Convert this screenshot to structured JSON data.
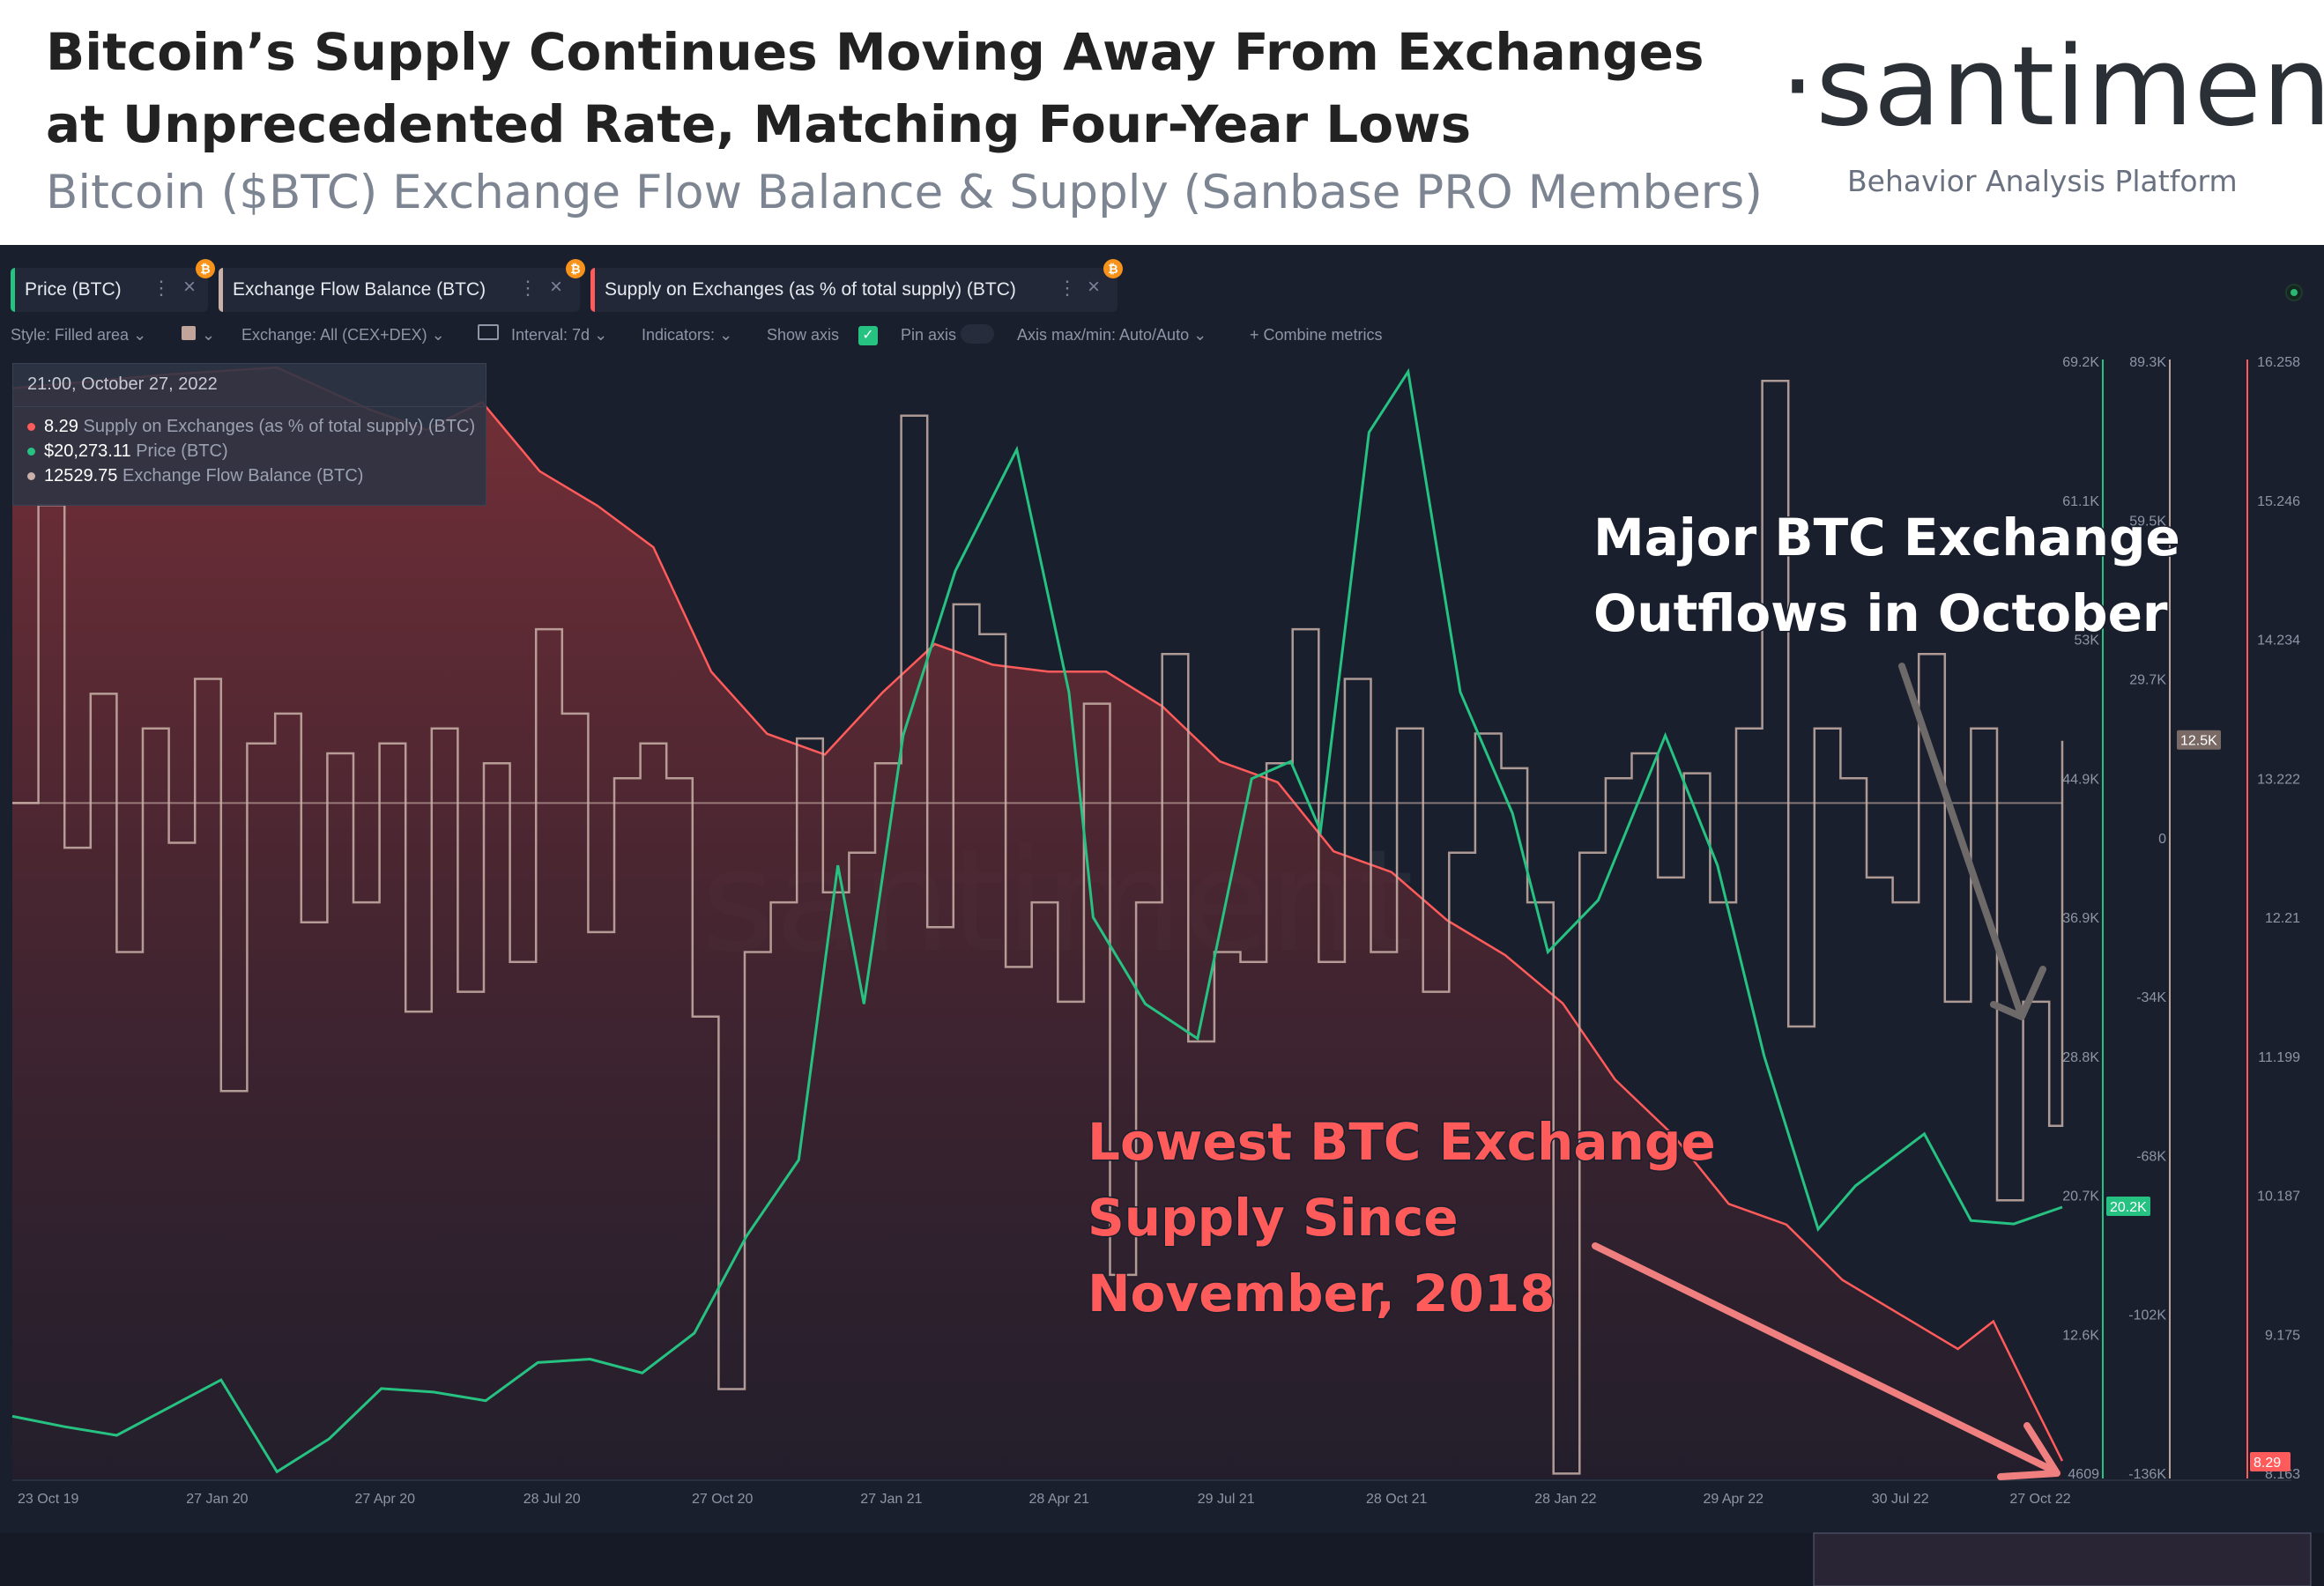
{
  "header": {
    "title_line1": "Bitcoin’s Supply Continues Moving Away From Exchanges",
    "title_line2": "at Unprecedented Rate, Matching Four-Year Lows",
    "subtitle": "Bitcoin ($BTC) Exchange Flow Balance & Supply (Sanbase PRO Members)",
    "logo": "·santiment·",
    "logo_tagline": "Behavior Analysis Platform"
  },
  "toolbar": {
    "metrics": [
      {
        "label": "Price (BTC)",
        "color": "#26c281"
      },
      {
        "label": "Exchange Flow Balance (BTC)",
        "color": "#c9b0a8"
      },
      {
        "label": "Supply on Exchanges (as % of total supply) (BTC)",
        "color": "#ff5b5b"
      }
    ],
    "coin_badge": "₿",
    "dots_icon": "⋮",
    "close_icon": "×",
    "style_label": "Style: Filled area",
    "exchange_label": "Exchange: All (CEX+DEX)",
    "interval_label": "Interval: 7d",
    "indicators_label": "Indicators:",
    "show_axis_label": "Show axis",
    "pin_axis_label": "Pin axis",
    "axis_minmax_label": "Axis max/min: Auto/Auto",
    "combine_label": "+  Combine metrics",
    "chevron": "⌄",
    "checkmark": "✓"
  },
  "tooltip": {
    "date": "21:00, October 27, 2022",
    "rows": [
      {
        "value": "8.29",
        "label": "Supply on Exchanges (as % of total supply) (BTC)",
        "color": "#ff5b5b"
      },
      {
        "value": "$20,273.11",
        "label": "Price (BTC)",
        "color": "#26c281"
      },
      {
        "value": "12529.75",
        "label": "Exchange Flow Balance (BTC)",
        "color": "#c9b0a8"
      }
    ]
  },
  "watermark": "santiment",
  "annotations": {
    "outflows_line1": "Major BTC Exchange",
    "outflows_line2": "Outflows in October",
    "lowest_line1": "Lowest BTC Exchange",
    "lowest_line2": "Supply Since",
    "lowest_line3": "November, 2018"
  },
  "chart_data": {
    "type": "line",
    "x_ticks": [
      "23 Oct 19",
      "27 Jan 20",
      "27 Apr 20",
      "28 Jul 20",
      "27 Oct 20",
      "27 Jan 21",
      "28 Apr 21",
      "29 Jul 21",
      "28 Oct 21",
      "28 Jan 22",
      "29 Apr 22",
      "30 Jul 22",
      "27 Oct 22"
    ],
    "x_range": [
      "2019-10-23",
      "2022-10-27"
    ],
    "price_axis": {
      "ticks": [
        "69.2K",
        "61.1K",
        "53K",
        "44.9K",
        "36.9K",
        "28.8K",
        "20.7K",
        "12.6K",
        "4609"
      ],
      "range": [
        4609,
        69200
      ],
      "current": "20.2K"
    },
    "flow_axis": {
      "ticks": [
        "89.3K",
        "59.5K",
        "29.7K",
        "0",
        "-34K",
        "-68K",
        "-102K",
        "-136K"
      ],
      "range": [
        -136000,
        89300
      ],
      "current": "12.5K"
    },
    "supply_axis": {
      "ticks": [
        "16.258",
        "15.246",
        "14.234",
        "13.222",
        "12.21",
        "11.199",
        "10.187",
        "9.175",
        "8.163"
      ],
      "range": [
        8.163,
        16.258
      ],
      "current": "8.29"
    },
    "series": [
      {
        "name": "Price (BTC)",
        "color": "#26c281",
        "points": [
          [
            "2019-10-23",
            8200
          ],
          [
            "2019-11-20",
            7600
          ],
          [
            "2019-12-18",
            7100
          ],
          [
            "2020-01-15",
            8700
          ],
          [
            "2020-02-12",
            10300
          ],
          [
            "2020-03-13",
            5000
          ],
          [
            "2020-04-10",
            6900
          ],
          [
            "2020-05-08",
            9800
          ],
          [
            "2020-06-05",
            9600
          ],
          [
            "2020-07-03",
            9100
          ],
          [
            "2020-07-31",
            11300
          ],
          [
            "2020-08-28",
            11500
          ],
          [
            "2020-09-25",
            10700
          ],
          [
            "2020-10-23",
            13000
          ],
          [
            "2020-11-20",
            18600
          ],
          [
            "2020-12-18",
            23000
          ],
          [
            "2021-01-08",
            40000
          ],
          [
            "2021-01-22",
            32000
          ],
          [
            "2021-02-12",
            47500
          ],
          [
            "2021-03-12",
            57000
          ],
          [
            "2021-04-14",
            64000
          ],
          [
            "2021-05-12",
            50000
          ],
          [
            "2021-05-25",
            37000
          ],
          [
            "2021-06-22",
            32000
          ],
          [
            "2021-07-20",
            30000
          ],
          [
            "2021-08-18",
            45000
          ],
          [
            "2021-09-08",
            46000
          ],
          [
            "2021-09-24",
            42000
          ],
          [
            "2021-10-20",
            65000
          ],
          [
            "2021-11-10",
            68500
          ],
          [
            "2021-12-08",
            50000
          ],
          [
            "2022-01-05",
            43000
          ],
          [
            "2022-01-24",
            35000
          ],
          [
            "2022-02-20",
            38000
          ],
          [
            "2022-03-28",
            47500
          ],
          [
            "2022-04-25",
            40000
          ],
          [
            "2022-05-20",
            29000
          ],
          [
            "2022-06-18",
            19000
          ],
          [
            "2022-07-08",
            21500
          ],
          [
            "2022-08-14",
            24500
          ],
          [
            "2022-09-08",
            19500
          ],
          [
            "2022-10-01",
            19300
          ],
          [
            "2022-10-27",
            20273
          ]
        ]
      },
      {
        "name": "Supply on Exchanges (as % of total supply) (BTC)",
        "color": "#ff5b5b",
        "points": [
          [
            "2019-10-23",
            16.05
          ],
          [
            "2020-01-15",
            16.15
          ],
          [
            "2020-03-13",
            16.2
          ],
          [
            "2020-05-01",
            15.9
          ],
          [
            "2020-06-01",
            15.75
          ],
          [
            "2020-07-01",
            15.95
          ],
          [
            "2020-08-01",
            15.45
          ],
          [
            "2020-09-01",
            15.2
          ],
          [
            "2020-10-01",
            14.9
          ],
          [
            "2020-11-01",
            14.0
          ],
          [
            "2020-12-01",
            13.55
          ],
          [
            "2021-01-01",
            13.4
          ],
          [
            "2021-02-01",
            13.85
          ],
          [
            "2021-03-01",
            14.2
          ],
          [
            "2021-04-01",
            14.05
          ],
          [
            "2021-05-01",
            14.0
          ],
          [
            "2021-06-01",
            14.0
          ],
          [
            "2021-07-01",
            13.75
          ],
          [
            "2021-08-01",
            13.35
          ],
          [
            "2021-09-01",
            13.2
          ],
          [
            "2021-10-01",
            12.7
          ],
          [
            "2021-11-01",
            12.55
          ],
          [
            "2021-12-01",
            12.2
          ],
          [
            "2022-01-01",
            11.95
          ],
          [
            "2022-02-01",
            11.6
          ],
          [
            "2022-03-01",
            11.05
          ],
          [
            "2022-04-01",
            10.65
          ],
          [
            "2022-05-01",
            10.15
          ],
          [
            "2022-06-01",
            10.0
          ],
          [
            "2022-07-01",
            9.6
          ],
          [
            "2022-08-01",
            9.35
          ],
          [
            "2022-09-01",
            9.1
          ],
          [
            "2022-09-20",
            9.3
          ],
          [
            "2022-10-10",
            8.75
          ],
          [
            "2022-10-27",
            8.29
          ]
        ]
      },
      {
        "name": "Exchange Flow Balance (BTC)",
        "color": "#c9b0a8",
        "type": "step",
        "points": [
          [
            "2019-10-23",
            0
          ],
          [
            "2019-11-06",
            60000
          ],
          [
            "2019-11-20",
            -9000
          ],
          [
            "2019-12-04",
            22000
          ],
          [
            "2019-12-18",
            -30000
          ],
          [
            "2020-01-01",
            15000
          ],
          [
            "2020-01-15",
            -8000
          ],
          [
            "2020-01-29",
            25000
          ],
          [
            "2020-02-12",
            -58000
          ],
          [
            "2020-02-26",
            12000
          ],
          [
            "2020-03-12",
            18000
          ],
          [
            "2020-03-26",
            -24000
          ],
          [
            "2020-04-09",
            10000
          ],
          [
            "2020-04-23",
            -20000
          ],
          [
            "2020-05-07",
            12000
          ],
          [
            "2020-05-21",
            -42000
          ],
          [
            "2020-06-04",
            15000
          ],
          [
            "2020-06-18",
            -38000
          ],
          [
            "2020-07-02",
            8000
          ],
          [
            "2020-07-16",
            -32000
          ],
          [
            "2020-07-30",
            35000
          ],
          [
            "2020-08-13",
            18000
          ],
          [
            "2020-08-27",
            -26000
          ],
          [
            "2020-09-10",
            5000
          ],
          [
            "2020-09-24",
            12000
          ],
          [
            "2020-10-08",
            5000
          ],
          [
            "2020-10-22",
            -43000
          ],
          [
            "2020-11-05",
            -118000
          ],
          [
            "2020-11-19",
            -30000
          ],
          [
            "2020-12-03",
            -20000
          ],
          [
            "2020-12-17",
            13000
          ],
          [
            "2020-12-31",
            -18000
          ],
          [
            "2021-01-14",
            -10000
          ],
          [
            "2021-01-28",
            8000
          ],
          [
            "2021-02-11",
            78000
          ],
          [
            "2021-02-25",
            -25000
          ],
          [
            "2021-03-11",
            40000
          ],
          [
            "2021-03-25",
            34000
          ],
          [
            "2021-04-08",
            -33000
          ],
          [
            "2021-04-22",
            -20000
          ],
          [
            "2021-05-06",
            -40000
          ],
          [
            "2021-05-20",
            20000
          ],
          [
            "2021-06-03",
            -95000
          ],
          [
            "2021-06-17",
            -20000
          ],
          [
            "2021-07-01",
            30000
          ],
          [
            "2021-07-15",
            -48000
          ],
          [
            "2021-07-29",
            -30000
          ],
          [
            "2021-08-12",
            -32000
          ],
          [
            "2021-08-26",
            8000
          ],
          [
            "2021-09-09",
            35000
          ],
          [
            "2021-09-23",
            -32000
          ],
          [
            "2021-10-07",
            25000
          ],
          [
            "2021-10-21",
            -30000
          ],
          [
            "2021-11-04",
            15000
          ],
          [
            "2021-11-18",
            -38000
          ],
          [
            "2021-12-02",
            -10000
          ],
          [
            "2021-12-16",
            14000
          ],
          [
            "2021-12-30",
            7000
          ],
          [
            "2022-01-13",
            -20000
          ],
          [
            "2022-01-27",
            -135000
          ],
          [
            "2022-02-10",
            -10000
          ],
          [
            "2022-02-24",
            5000
          ],
          [
            "2022-03-10",
            10000
          ],
          [
            "2022-03-24",
            -15000
          ],
          [
            "2022-04-07",
            6000
          ],
          [
            "2022-04-21",
            -20000
          ],
          [
            "2022-05-05",
            15000
          ],
          [
            "2022-05-19",
            85000
          ],
          [
            "2022-06-02",
            -45000
          ],
          [
            "2022-06-16",
            15000
          ],
          [
            "2022-06-30",
            5000
          ],
          [
            "2022-07-14",
            -15000
          ],
          [
            "2022-07-28",
            -20000
          ],
          [
            "2022-08-11",
            30000
          ],
          [
            "2022-08-25",
            -40000
          ],
          [
            "2022-09-08",
            15000
          ],
          [
            "2022-09-22",
            -80000
          ],
          [
            "2022-10-06",
            -40000
          ],
          [
            "2022-10-20",
            -65000
          ],
          [
            "2022-10-27",
            12530
          ]
        ]
      }
    ]
  }
}
